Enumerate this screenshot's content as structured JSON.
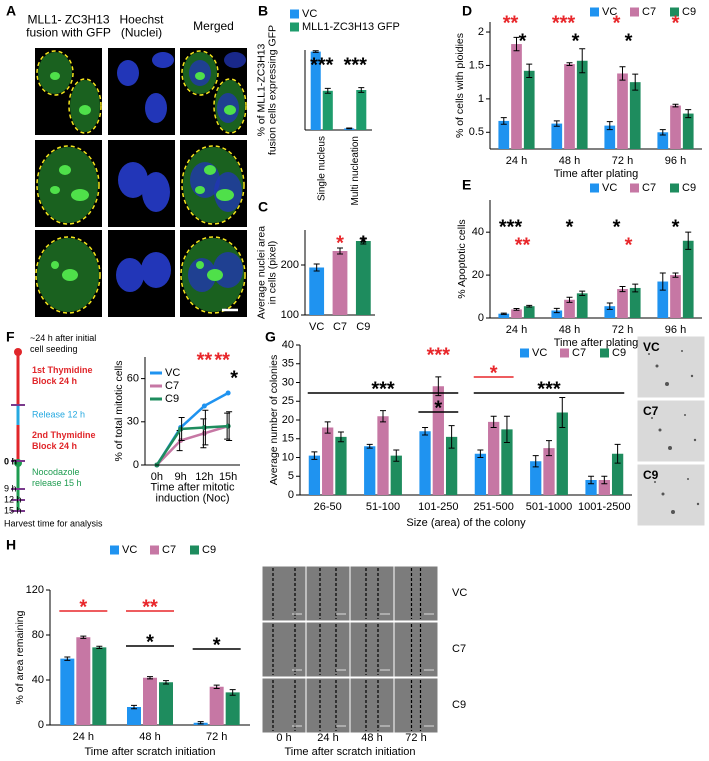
{
  "panel_labels": [
    "A",
    "B",
    "C",
    "D",
    "E",
    "F",
    "G",
    "H"
  ],
  "panel_a": {
    "column_titles": [
      [
        "MLL1- ZC3H13",
        "fusion with GFP"
      ],
      [
        "Hoechst",
        "(Nuclei)"
      ],
      [
        "Merged"
      ]
    ]
  },
  "panel_f_timeline": {
    "labels": [
      [
        "~24 h after initial",
        "cell seeding"
      ],
      [
        "1st Thymidine",
        "Block 24 h"
      ],
      [
        "Release 12 h"
      ],
      [
        "2nd Thymidine",
        "Block 24 h"
      ],
      [
        "0 h"
      ],
      [
        "Nocodazole",
        "release 15 h"
      ],
      [
        "9 h"
      ],
      [
        "12 h"
      ],
      [
        "15 h"
      ],
      [
        "Harvest time for analysis"
      ]
    ]
  },
  "panel_g_images": {
    "labels": [
      "VC",
      "C7",
      "C9"
    ]
  },
  "panel_h_images": {
    "rows": [
      "VC",
      "C7",
      "C9"
    ],
    "columns": [
      "0 h",
      "24 h",
      "48 h",
      "72 h"
    ],
    "xlabel": "Time after scratch initiation"
  },
  "chart_data": [
    {
      "type": "bar",
      "ylabel": [
        "% of MLL1-ZC3H13",
        "fusion cells expressing GFP"
      ],
      "categories": [
        "Single nucleus",
        "Multi nucleation"
      ],
      "series": [
        {
          "name": "VC",
          "color": "#1f93f0",
          "values": [
            98,
            2
          ],
          "errors": [
            1,
            0.5
          ]
        },
        {
          "name": "MLL1-ZC3H13 GFP",
          "color": "#1e9c6c",
          "values": [
            49,
            50
          ],
          "errors": [
            3,
            3
          ]
        }
      ],
      "ylim": [
        0,
        100
      ],
      "legend": "top-left",
      "annotations": [
        {
          "text": "***",
          "color": "#000000",
          "category": "Single nucleus"
        },
        {
          "text": "***",
          "color": "#000000",
          "category": "Multi nucleation"
        }
      ]
    },
    {
      "type": "bar",
      "ylabel": [
        "Average nuclei area",
        "in cells (pixel)"
      ],
      "categories": [
        "VC",
        "C7",
        "C9"
      ],
      "values": [
        195,
        228,
        248
      ],
      "errors": [
        7,
        6,
        6
      ],
      "colors": [
        "#1f93f0",
        "#c677a4",
        "#1e8c5e"
      ],
      "ylim": [
        100,
        270
      ],
      "yticks": [
        100,
        200
      ],
      "annotations": [
        {
          "text": "*",
          "color": "#e8262a",
          "category": "C7"
        },
        {
          "text": "*",
          "color": "#000000",
          "category": "C9"
        }
      ]
    },
    {
      "type": "bar",
      "ylabel": "% of cells with ploidies",
      "xlabel": "Time after plating",
      "categories": [
        "24 h",
        "48 h",
        "72 h",
        "96 h"
      ],
      "series": [
        {
          "name": "VC",
          "color": "#1f93f0",
          "values": [
            0.67,
            0.63,
            0.6,
            0.5
          ],
          "errors": [
            0.05,
            0.04,
            0.06,
            0.04
          ]
        },
        {
          "name": "C7",
          "color": "#c677a4",
          "values": [
            1.82,
            1.52,
            1.38,
            0.9
          ],
          "errors": [
            0.1,
            0.02,
            0.1,
            0.02
          ]
        },
        {
          "name": "C9",
          "color": "#1e8c5e",
          "values": [
            1.42,
            1.57,
            1.25,
            0.78
          ],
          "errors": [
            0.1,
            0.18,
            0.12,
            0.06
          ]
        }
      ],
      "ylim": [
        0.25,
        2.15
      ],
      "yticks": [
        0.5,
        1,
        1.5,
        2
      ],
      "legend": "top",
      "annotations": [
        {
          "text": "**",
          "color": "#e8262a",
          "category": "24 h"
        },
        {
          "text": "*",
          "color": "#000000",
          "category": "24 h"
        },
        {
          "text": "***",
          "color": "#e8262a",
          "category": "48 h"
        },
        {
          "text": "*",
          "color": "#000000",
          "category": "48 h"
        },
        {
          "text": "*",
          "color": "#e8262a",
          "category": "72 h"
        },
        {
          "text": "*",
          "color": "#000000",
          "category": "72 h"
        },
        {
          "text": "*",
          "color": "#e8262a",
          "category": "96 h"
        }
      ]
    },
    {
      "type": "bar",
      "ylabel": "% Apoptotic cells",
      "xlabel": "Time after plating",
      "categories": [
        "24 h",
        "48 h",
        "72 h",
        "96 h"
      ],
      "series": [
        {
          "name": "VC",
          "color": "#1f93f0",
          "values": [
            2,
            3.5,
            5.5,
            17
          ],
          "errors": [
            0.3,
            1,
            1.5,
            4
          ]
        },
        {
          "name": "C7",
          "color": "#c677a4",
          "values": [
            4,
            8.5,
            13.5,
            20
          ],
          "errors": [
            0.4,
            1.2,
            1.2,
            1
          ]
        },
        {
          "name": "C9",
          "color": "#1e8c5e",
          "values": [
            5.5,
            11.5,
            14,
            36
          ],
          "errors": [
            0.4,
            1,
            1.8,
            4
          ]
        }
      ],
      "ylim": [
        0,
        55
      ],
      "yticks": [
        0,
        20,
        40
      ],
      "legend": "top",
      "annotations": [
        {
          "text": "***",
          "color": "#000000",
          "category": "24 h"
        },
        {
          "text": "**",
          "color": "#e8262a",
          "category": "24 h"
        },
        {
          "text": "*",
          "color": "#000000",
          "category": "48 h"
        },
        {
          "text": "*",
          "color": "#000000",
          "category": "72 h"
        },
        {
          "text": "*",
          "color": "#e8262a",
          "category": "72 h"
        },
        {
          "text": "*",
          "color": "#000000",
          "category": "96 h"
        }
      ]
    },
    {
      "type": "line",
      "ylabel": "% of total mitotic cells",
      "xlabel": [
        "Time after mitotic",
        "induction (Noc)"
      ],
      "categories": [
        "0h",
        "9h",
        "12h",
        "15h"
      ],
      "series": [
        {
          "name": "VC",
          "color": "#1f93f0",
          "values": [
            0,
            26,
            41,
            50
          ]
        },
        {
          "name": "C7",
          "color": "#c677a4",
          "values": [
            0,
            17,
            22,
            27
          ],
          "errors": [
            0,
            7,
            10,
            9
          ]
        },
        {
          "name": "C9",
          "color": "#1e8c5e",
          "values": [
            0,
            25,
            26,
            27
          ],
          "errors": [
            0,
            8,
            12,
            10
          ]
        }
      ],
      "ylim": [
        0,
        75
      ],
      "yticks": [
        0,
        30,
        60
      ],
      "legend": "top-left",
      "annotations": [
        {
          "text": "**",
          "color": "#e8262a",
          "category": "12h"
        },
        {
          "text": "**",
          "color": "#e8262a",
          "category": "15h"
        },
        {
          "text": "*",
          "color": "#000000",
          "category": "15h"
        }
      ]
    },
    {
      "type": "bar",
      "ylabel": "Average number of colonies",
      "xlabel": "Size (area) of the colony",
      "categories": [
        "26-50",
        "51-100",
        "101-250",
        "251-500",
        "501-1000",
        "1001-2500"
      ],
      "series": [
        {
          "name": "VC",
          "color": "#1f93f0",
          "values": [
            10.5,
            13,
            17,
            11,
            9,
            4
          ],
          "errors": [
            1,
            0.5,
            1,
            1,
            1.5,
            1
          ]
        },
        {
          "name": "C7",
          "color": "#c677a4",
          "values": [
            18,
            21,
            29,
            19.5,
            12.5,
            4
          ],
          "errors": [
            1.5,
            1.5,
            2.5,
            1.5,
            2,
            1
          ]
        },
        {
          "name": "C9",
          "color": "#1e8c5e",
          "values": [
            15.5,
            10.5,
            15.5,
            17.5,
            22,
            11
          ],
          "errors": [
            1.3,
            1.5,
            3,
            3.5,
            4,
            2.5
          ]
        }
      ],
      "ylim": [
        0,
        40
      ],
      "yticks": [
        0,
        5,
        10,
        15,
        20,
        25,
        30,
        35,
        40
      ],
      "legend": "top",
      "annotations": [
        {
          "text": "***",
          "color": "#000000",
          "from": "26-50",
          "to": "101-250"
        },
        {
          "text": "***",
          "color": "#e8262a",
          "category": "101-250"
        },
        {
          "text": "*",
          "color": "#000000",
          "from": "101-250",
          "to": "101-250"
        },
        {
          "text": "*",
          "color": "#e8262a",
          "from": "251-500",
          "to": "251-500"
        },
        {
          "text": "***",
          "color": "#000000",
          "from": "251-500",
          "to": "1001-2500"
        }
      ]
    },
    {
      "type": "bar",
      "ylabel": "% of area remaining",
      "xlabel": "Time after scratch initiation",
      "categories": [
        "24 h",
        "48 h",
        "72 h"
      ],
      "series": [
        {
          "name": "VC",
          "color": "#1f93f0",
          "values": [
            59,
            16,
            2
          ],
          "errors": [
            1.5,
            1.5,
            1
          ]
        },
        {
          "name": "C7",
          "color": "#c677a4",
          "values": [
            78,
            42,
            34
          ],
          "errors": [
            1,
            1,
            1.5
          ]
        },
        {
          "name": "C9",
          "color": "#1e8c5e",
          "values": [
            69,
            38,
            29
          ],
          "errors": [
            1,
            1.5,
            2.5
          ]
        }
      ],
      "ylim": [
        0,
        120
      ],
      "yticks": [
        0,
        40,
        80,
        120
      ],
      "legend": "top",
      "annotations": [
        {
          "text": "*",
          "color": "#e8262a",
          "from": "24 h",
          "to": "24 h"
        },
        {
          "text": "**",
          "color": "#e8262a",
          "from": "48 h",
          "to": "48 h"
        },
        {
          "text": "*",
          "color": "#000000",
          "from": "48 h",
          "to": "48 h"
        },
        {
          "text": "*",
          "color": "#000000",
          "from": "72 h",
          "to": "72 h"
        }
      ]
    }
  ]
}
